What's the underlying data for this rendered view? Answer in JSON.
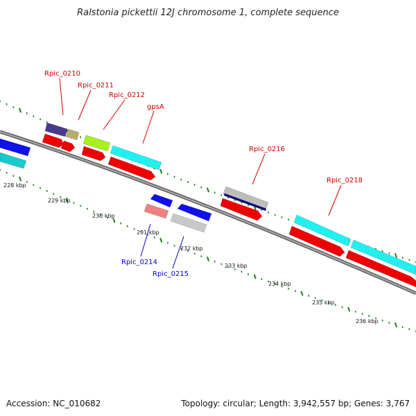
{
  "title": "Ralstonia pickettii 12J chromosome 1, complete sequence",
  "footer": {
    "accession": "Accession: NC_010682",
    "summary": "Topology: circular; Length: 3,942,557 bp; Genes: 3,767"
  },
  "colors": {
    "background": "#ffffff",
    "backbone": "#8c8c8c",
    "tick": "#1f7a1f",
    "label_top": "#cc0000",
    "label_bottom": "#0000cc"
  },
  "tick_labels": [
    "228 kbp",
    "229 kbp",
    "230 kbp",
    "231 kbp",
    "232 kbp",
    "233 kbp",
    "234 kbp",
    "235 kbp",
    "236 kbp"
  ],
  "gene_labels": [
    {
      "text": "Rpic_0210",
      "color": "#cc0000"
    },
    {
      "text": "Rpic_0211",
      "color": "#cc0000"
    },
    {
      "text": "Rpic_0212",
      "color": "#cc0000"
    },
    {
      "text": "gpsA",
      "color": "#cc0000"
    },
    {
      "text": "Rpic_0216",
      "color": "#cc0000"
    },
    {
      "text": "Rpic_0218",
      "color": "#cc0000"
    },
    {
      "text": "Rpic_0214",
      "color": "#0000cc"
    },
    {
      "text": "Rpic_0215",
      "color": "#0000cc"
    }
  ],
  "features": [
    {
      "name": "blue-left-feature",
      "color": "#1010e8"
    },
    {
      "name": "cyan-left-feature",
      "color": "#19c9cc"
    },
    {
      "name": "rpic-0210-feature",
      "color": "#4a3a8c"
    },
    {
      "name": "rpic-0211-feature",
      "color": "#b8ad6a"
    },
    {
      "name": "rpic-0212-feature",
      "color": "#a8f020"
    },
    {
      "name": "gpsa-feature",
      "color": "#22f0f0"
    },
    {
      "name": "rpic-0216-feature",
      "color": "#bdbdbd"
    },
    {
      "name": "rpic-0216-band",
      "color": "#0a0a7a"
    },
    {
      "name": "rpic-0218-feature",
      "color": "#22f0f0"
    },
    {
      "name": "right-cyan-feature",
      "color": "#22f0f0"
    },
    {
      "name": "cds-1",
      "color": "#ee0000"
    },
    {
      "name": "cds-2",
      "color": "#ee0000"
    },
    {
      "name": "cds-3",
      "color": "#ee0000"
    },
    {
      "name": "cds-4",
      "color": "#ee0000"
    },
    {
      "name": "cds-5",
      "color": "#ee0000"
    },
    {
      "name": "cds-6",
      "color": "#ee0000"
    },
    {
      "name": "cds-7",
      "color": "#ee0000"
    },
    {
      "name": "rpic-0214-cds",
      "color": "#1010e8"
    },
    {
      "name": "rpic-0214-feature",
      "color": "#f08080"
    },
    {
      "name": "rpic-0215-cds",
      "color": "#1010e8"
    },
    {
      "name": "rpic-0215-feature",
      "color": "#c8c8c8"
    }
  ]
}
